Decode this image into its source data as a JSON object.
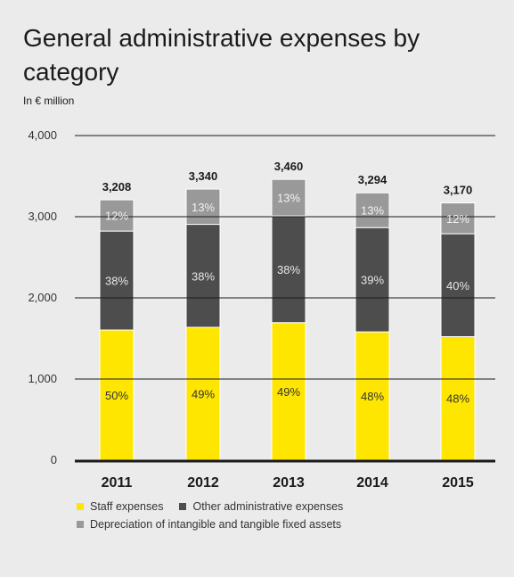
{
  "title": "General administrative expenses by category",
  "unit_label": "In € million",
  "chart_data": {
    "type": "bar",
    "stacked": true,
    "title": "General administrative expenses by category",
    "ylabel": "In € million",
    "ylim": [
      0,
      4000
    ],
    "yticks": [
      0,
      1000,
      2000,
      3000,
      4000
    ],
    "ytick_labels": [
      "0",
      "1,000",
      "2,000",
      "3,000",
      "4,000"
    ],
    "categories": [
      "2011",
      "2012",
      "2013",
      "2014",
      "2015"
    ],
    "totals": [
      3208,
      3340,
      3460,
      3294,
      3170
    ],
    "total_labels": [
      "3,208",
      "3,340",
      "3,460",
      "3,294",
      "3,170"
    ],
    "series": [
      {
        "name": "Staff expenses",
        "color": "#ffe600",
        "label_color": "#333333",
        "values": [
          1604,
          1637,
          1695,
          1581,
          1522
        ],
        "labels": [
          "50%",
          "49%",
          "49%",
          "48%",
          "48%"
        ]
      },
      {
        "name": "Other administrative expenses",
        "color": "#4d4d4d",
        "label_color": "#e6e6e6",
        "values": [
          1219,
          1269,
          1315,
          1285,
          1268
        ],
        "labels": [
          "38%",
          "38%",
          "38%",
          "39%",
          "40%"
        ]
      },
      {
        "name": "Depreciation of intangible and tangible fixed assets",
        "color": "#999999",
        "label_color": "#f2f2f2",
        "values": [
          385,
          434,
          450,
          428,
          380
        ],
        "labels": [
          "12%",
          "13%",
          "13%",
          "13%",
          "12%"
        ]
      }
    ],
    "grid": true,
    "legend_position": "bottom-left"
  }
}
